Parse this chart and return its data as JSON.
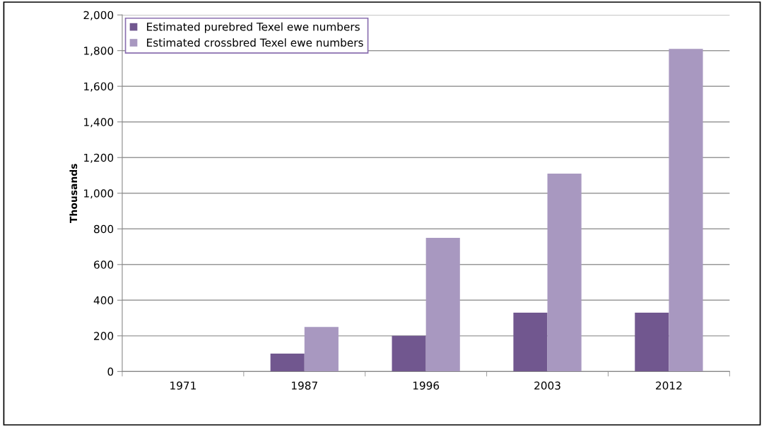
{
  "chart_data": {
    "type": "bar",
    "ylabel": "Thousands",
    "categories": [
      "1971",
      "1987",
      "1996",
      "2003",
      "2012"
    ],
    "series": [
      {
        "name": "Estimated purebred Texel ewe numbers",
        "color": "#71578f",
        "values": [
          0,
          100,
          200,
          330,
          330
        ]
      },
      {
        "name": "Estimated crossbred Texel ewe numbers",
        "color": "#a898c0",
        "values": [
          0,
          250,
          750,
          1110,
          1810
        ]
      }
    ],
    "ylim": [
      0,
      2000
    ],
    "yticks": [
      {
        "value": 0,
        "label": "0"
      },
      {
        "value": 200,
        "label": "200"
      },
      {
        "value": 400,
        "label": "400"
      },
      {
        "value": 600,
        "label": "600"
      },
      {
        "value": 800,
        "label": "800"
      },
      {
        "value": 1000,
        "label": "1,000"
      },
      {
        "value": 1200,
        "label": "1,200"
      },
      {
        "value": 1400,
        "label": "1,400"
      },
      {
        "value": 1600,
        "label": "1,600"
      },
      {
        "value": 1800,
        "label": "1,800"
      },
      {
        "value": 2000,
        "label": "2,000"
      }
    ],
    "grid": "y",
    "legend": "top left"
  }
}
